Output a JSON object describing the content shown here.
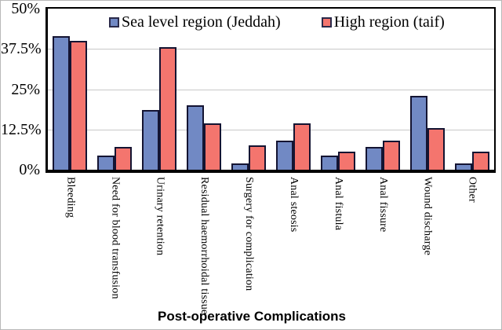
{
  "chart_data": {
    "type": "bar",
    "title": "",
    "xlabel": "Post-operative Complications",
    "ylabel": "",
    "categories": [
      "Bleeding",
      "Need for blood transfusion",
      "Urinary retention",
      "Residual haemorrhoidal tissue",
      "Surgery for complication",
      "Anal steosis",
      "Anal fistula",
      "Anal fissure",
      "Wound discharge",
      "Other"
    ],
    "series": [
      {
        "name": "Sea level region (Jeddah)",
        "color": "#7189C4",
        "values": [
          41.5,
          4.5,
          18.5,
          20,
          2,
          9,
          4.5,
          7,
          23,
          2
        ]
      },
      {
        "name": "High region (taif)",
        "color": "#F4756E",
        "values": [
          40,
          7,
          38,
          14.5,
          7.5,
          14.5,
          5.5,
          9,
          13,
          5.5
        ]
      }
    ],
    "ylim": [
      0,
      50
    ],
    "yticks": [
      "0%",
      "12.5%",
      "25%",
      "37.5%",
      "50%"
    ],
    "grid": true,
    "legend_position": "top-inside"
  },
  "colors": {
    "series_blue": "#7189C4",
    "series_red": "#F4756E",
    "bar_border": "#141432",
    "axis": "#000000",
    "gridline": "#c9c9c9",
    "text": "#000000"
  }
}
